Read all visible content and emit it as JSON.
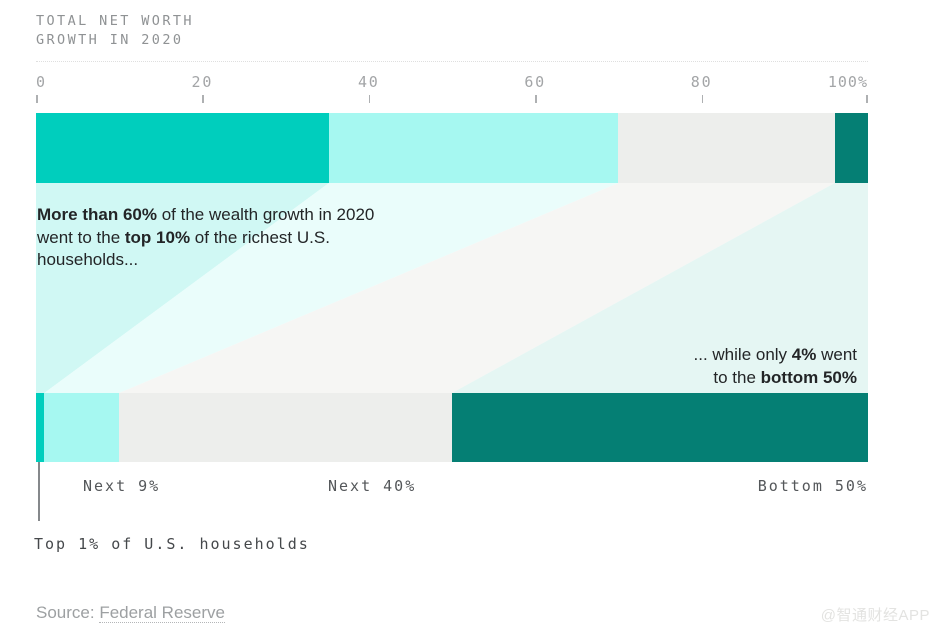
{
  "header": {
    "title_line1": "TOTAL NET WORTH",
    "title_line2": "GROWTH IN 2020"
  },
  "chart_data": {
    "type": "bar",
    "subtype": "stacked-percentage-alluvial",
    "title": "TOTAL NET WORTH GROWTH IN 2020",
    "unit": "%",
    "axis": {
      "range": [
        0,
        100
      ],
      "ticks": [
        {
          "label": "0",
          "value": 0
        },
        {
          "label": "20",
          "value": 20
        },
        {
          "label": "40",
          "value": 40
        },
        {
          "label": "60",
          "value": 60
        },
        {
          "label": "80",
          "value": 80
        },
        {
          "label": "100%",
          "value": 100
        }
      ]
    },
    "groups": [
      {
        "name": "Top 1%",
        "wealth_growth_share_pct": 35.2,
        "population_share_pct": 1,
        "color": "#00CEBD",
        "flow_color": "#D0F8F4"
      },
      {
        "name": "Next 9%",
        "wealth_growth_share_pct": 34.8,
        "population_share_pct": 9,
        "color": "#A6F8F1",
        "flow_color": "#EAFDFB"
      },
      {
        "name": "Next 40%",
        "wealth_growth_share_pct": 26.0,
        "population_share_pct": 40,
        "color": "#EDEEEC",
        "flow_color": "#F6F6F4"
      },
      {
        "name": "Bottom 50%",
        "wealth_growth_share_pct": 4.0,
        "population_share_pct": 50,
        "color": "#057F74",
        "flow_color": "#E5F6F3"
      }
    ]
  },
  "annotations": {
    "top10": {
      "lines": [
        [
          {
            "t": "More than 60%",
            "b": true
          },
          {
            "t": " of the wealth growth in 2020"
          }
        ],
        [
          {
            "t": "went to the "
          },
          {
            "t": "top 10%",
            "b": true
          },
          {
            "t": " of the richest U.S."
          }
        ],
        [
          {
            "t": "households..."
          }
        ]
      ]
    },
    "bottom50": {
      "lines": [
        [
          {
            "t": "... while only "
          },
          {
            "t": "4%",
            "b": true
          },
          {
            "t": " went"
          }
        ],
        [
          {
            "t": "to the "
          },
          {
            "t": "bottom 50%",
            "b": true
          }
        ]
      ]
    }
  },
  "bottom_labels": {
    "top1_callout": "Top 1% of U.S. households"
  },
  "source": {
    "prefix": "Source: ",
    "link": "Federal Reserve"
  },
  "watermark": "@智通财经APP"
}
